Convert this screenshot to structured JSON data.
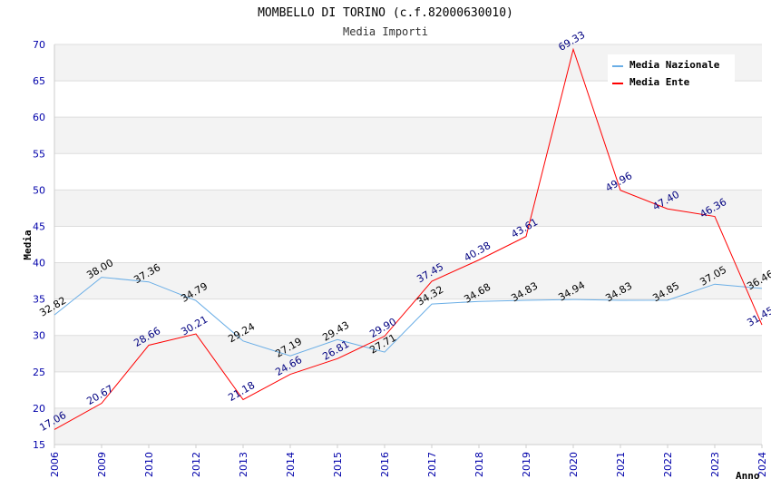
{
  "chart_data": {
    "type": "line",
    "title": "MOMBELLO DI TORINO (c.f.82000630010)",
    "subtitle": "Media Importi",
    "xlabel": "Anno",
    "ylabel": "Media",
    "ylim": [
      15,
      70
    ],
    "yticks": [
      "15",
      "20",
      "25",
      "30",
      "35",
      "40",
      "45",
      "50",
      "55",
      "60",
      "65",
      "70"
    ],
    "categories": [
      "2006",
      "2009",
      "2010",
      "2012",
      "2013",
      "2014",
      "2015",
      "2016",
      "2017",
      "2018",
      "2019",
      "2020",
      "2021",
      "2022",
      "2023",
      "2024"
    ],
    "series": [
      {
        "name": "Media Nazionale",
        "color": "#6aaee6",
        "label_color": "#000000",
        "values": [
          32.82,
          38.0,
          37.36,
          34.79,
          29.24,
          27.19,
          29.43,
          27.71,
          34.32,
          34.68,
          34.83,
          34.94,
          34.83,
          34.85,
          37.05,
          36.46
        ],
        "labels": [
          "32.82",
          "38.00",
          "37.36",
          "34.79",
          "29.24",
          "27.19",
          "29.43",
          "27.71",
          "34.32",
          "34.68",
          "34.83",
          "34.94",
          "34.83",
          "34.85",
          "37.05",
          "36.46"
        ]
      },
      {
        "name": "Media Ente",
        "color": "#ff0000",
        "label_color": "#000080",
        "values": [
          17.06,
          20.67,
          28.66,
          30.21,
          21.18,
          24.66,
          26.81,
          29.9,
          37.45,
          40.38,
          43.61,
          69.33,
          49.96,
          47.4,
          46.36,
          31.45
        ],
        "labels": [
          "17.06",
          "20.67",
          "28.66",
          "30.21",
          "21.18",
          "24.66",
          "26.81",
          "29.90",
          "37.45",
          "40.38",
          "43.61",
          "69.33",
          "49.96",
          "47.40",
          "46.36",
          "31.45"
        ]
      }
    ],
    "legend_position": "top-right",
    "grid": true
  }
}
